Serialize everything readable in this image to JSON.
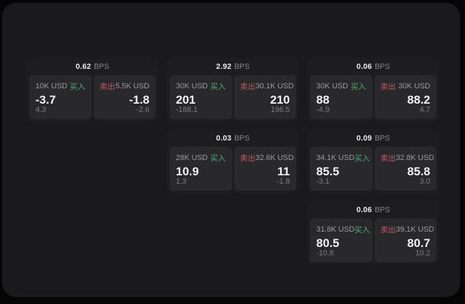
{
  "labels": {
    "bps_unit": "BPS",
    "buy": "买入",
    "sell": "卖出"
  },
  "colors": {
    "page": "#050505",
    "container": "#1a1a1c",
    "card": "#1d1d1f",
    "panel": "#29292b",
    "buy": "#4fae77",
    "sell": "#c25565"
  },
  "cards": [
    {
      "row": 1,
      "col": 1,
      "bps": "0.62",
      "buy": {
        "size": "10K USD",
        "value": "-3.7",
        "delta": "4.3"
      },
      "sell": {
        "size": "5.5K USD",
        "value": "-1.8",
        "delta": "-2.6"
      }
    },
    {
      "row": 1,
      "col": 2,
      "bps": "2.92",
      "buy": {
        "size": "30K USD",
        "value": "201",
        "delta": "-188.1"
      },
      "sell": {
        "size": "30.1K USD",
        "value": "210",
        "delta": "196.5"
      }
    },
    {
      "row": 1,
      "col": 3,
      "bps": "0.06",
      "buy": {
        "size": "30K USD",
        "value": "88",
        "delta": "-4.9"
      },
      "sell": {
        "size": "30K USD",
        "value": "88.2",
        "delta": "4.7"
      }
    },
    {
      "row": 2,
      "col": 2,
      "bps": "0.03",
      "buy": {
        "size": "28K USD",
        "value": "10.9",
        "delta": "1.3"
      },
      "sell": {
        "size": "32.6K USD",
        "value": "11",
        "delta": "-1.8"
      }
    },
    {
      "row": 2,
      "col": 3,
      "bps": "0.09",
      "buy": {
        "size": "34.1K USD",
        "value": "85.5",
        "delta": "-3.1"
      },
      "sell": {
        "size": "32.8K USD",
        "value": "85.8",
        "delta": "3.0"
      }
    },
    {
      "row": 3,
      "col": 3,
      "bps": "0.06",
      "buy": {
        "size": "31.8K USD",
        "value": "80.5",
        "delta": "-10.8"
      },
      "sell": {
        "size": "39.1K USD",
        "value": "80.7",
        "delta": "10.2"
      }
    }
  ]
}
